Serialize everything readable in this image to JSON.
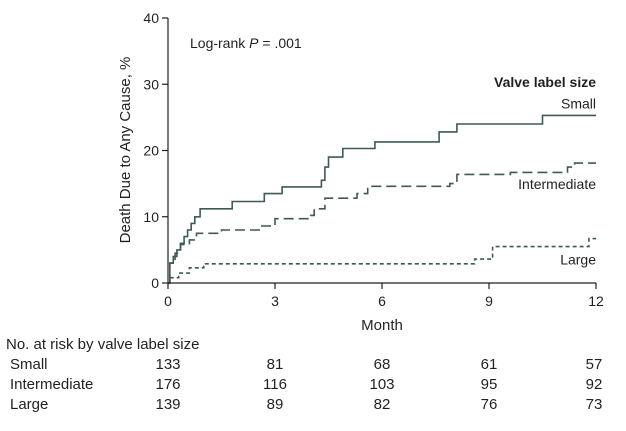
{
  "chart_data": {
    "type": "line",
    "step": true,
    "annotation": "Log-rank P = .001",
    "annotation_prefix": "Log-rank ",
    "annotation_p": "P",
    "annotation_suffix": " = .001",
    "xlabel": "Month",
    "ylabel": "Death Due to Any Cause, %",
    "xlim": [
      0,
      12
    ],
    "ylim": [
      0,
      40
    ],
    "xticks": [
      0,
      3,
      6,
      9,
      12
    ],
    "yticks": [
      0,
      10,
      20,
      30,
      40
    ],
    "legend_title": "Valve label size",
    "series": [
      {
        "name": "Small",
        "color": "#3d5a58",
        "dash": "solid",
        "points": [
          [
            0,
            0
          ],
          [
            0.05,
            3
          ],
          [
            0.15,
            4
          ],
          [
            0.25,
            5
          ],
          [
            0.35,
            6
          ],
          [
            0.45,
            7
          ],
          [
            0.55,
            8
          ],
          [
            0.65,
            9
          ],
          [
            0.75,
            10
          ],
          [
            0.9,
            11.2
          ],
          [
            1.8,
            12.3
          ],
          [
            2.7,
            13.5
          ],
          [
            3.2,
            14.5
          ],
          [
            4.3,
            15.5
          ],
          [
            4.4,
            17.5
          ],
          [
            4.5,
            19
          ],
          [
            4.9,
            20.3
          ],
          [
            5.8,
            21.3
          ],
          [
            7.6,
            22.8
          ],
          [
            8.1,
            24
          ],
          [
            10.5,
            25.3
          ],
          [
            12,
            25.3
          ]
        ]
      },
      {
        "name": "Intermediate",
        "color": "#3d5a58",
        "dash": "10,5",
        "points": [
          [
            0,
            0
          ],
          [
            0.05,
            3
          ],
          [
            0.2,
            4.5
          ],
          [
            0.35,
            5.8
          ],
          [
            0.6,
            6.5
          ],
          [
            0.8,
            7.5
          ],
          [
            1.5,
            8
          ],
          [
            2.6,
            8.6
          ],
          [
            3.0,
            9.7
          ],
          [
            4.0,
            10.2
          ],
          [
            4.1,
            11.2
          ],
          [
            4.4,
            12.8
          ],
          [
            5.3,
            13.5
          ],
          [
            5.6,
            14.6
          ],
          [
            7.9,
            15
          ],
          [
            8.1,
            16.4
          ],
          [
            9.6,
            16.7
          ],
          [
            11.2,
            17.5
          ],
          [
            11.4,
            18.1
          ],
          [
            12,
            18.1
          ]
        ]
      },
      {
        "name": "Large",
        "color": "#3d5a58",
        "dash": "4,3",
        "points": [
          [
            0,
            0
          ],
          [
            0.05,
            0.8
          ],
          [
            0.3,
            1.5
          ],
          [
            0.6,
            2.3
          ],
          [
            1.0,
            2.9
          ],
          [
            8.6,
            3.6
          ],
          [
            9.1,
            5.5
          ],
          [
            11.8,
            6.7
          ],
          [
            12,
            6.7
          ]
        ]
      }
    ],
    "risk_table": {
      "title": "No. at risk by valve label size",
      "times": [
        0,
        3,
        6,
        9,
        12
      ],
      "rows": [
        {
          "name": "Small",
          "values": [
            "133",
            "81",
            "68",
            "61",
            "57"
          ]
        },
        {
          "name": "Intermediate",
          "values": [
            "176",
            "116",
            "103",
            "95",
            "92"
          ]
        },
        {
          "name": "Large",
          "values": [
            "139",
            "89",
            "82",
            "76",
            "73"
          ]
        }
      ]
    }
  }
}
